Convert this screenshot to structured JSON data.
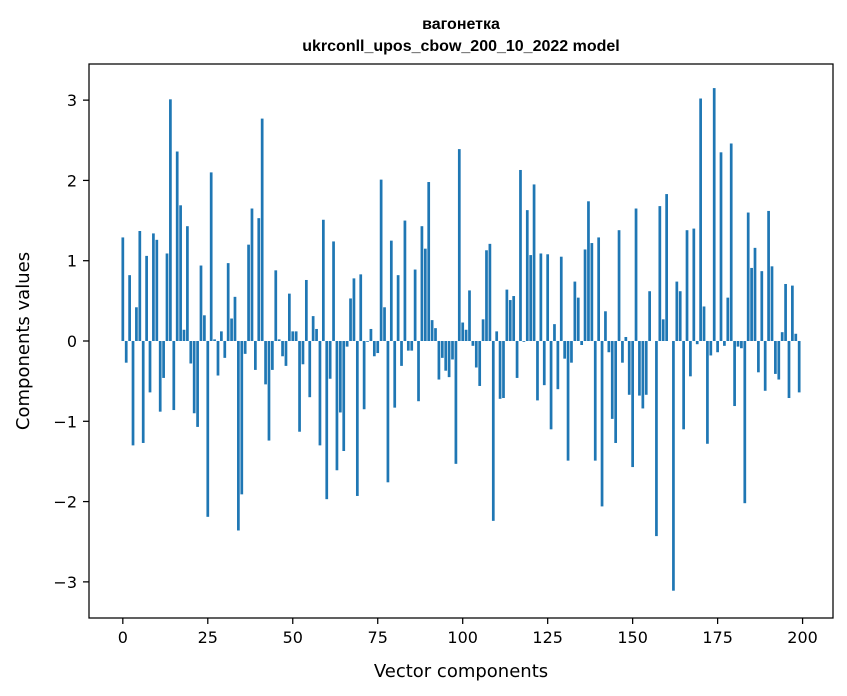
{
  "chart_data": {
    "type": "bar",
    "title": "вагонетка",
    "subtitle": "ukrconll_upos_cbow_200_10_2022 model",
    "xlabel": "Vector components",
    "ylabel": "Components values",
    "xlim": [
      -9.95,
      208.95
    ],
    "ylim": [
      -3.45,
      3.45
    ],
    "xticks": [
      0,
      25,
      50,
      75,
      100,
      125,
      150,
      175,
      200
    ],
    "yticks": [
      -3,
      -2,
      -1,
      0,
      1,
      2,
      3
    ],
    "xtick_labels": [
      "0",
      "25",
      "50",
      "75",
      "100",
      "125",
      "150",
      "175",
      "200"
    ],
    "ytick_labels": [
      "−3",
      "−2",
      "−1",
      "0",
      "1",
      "2",
      "3"
    ],
    "grid": false,
    "color": "#1f77b4",
    "x": [
      0,
      1,
      2,
      3,
      4,
      5,
      6,
      7,
      8,
      9,
      10,
      11,
      12,
      13,
      14,
      15,
      16,
      17,
      18,
      19,
      20,
      21,
      22,
      23,
      24,
      25,
      26,
      27,
      28,
      29,
      30,
      31,
      32,
      33,
      34,
      35,
      36,
      37,
      38,
      39,
      40,
      41,
      42,
      43,
      44,
      45,
      46,
      47,
      48,
      49,
      50,
      51,
      52,
      53,
      54,
      55,
      56,
      57,
      58,
      59,
      60,
      61,
      62,
      63,
      64,
      65,
      66,
      67,
      68,
      69,
      70,
      71,
      72,
      73,
      74,
      75,
      76,
      77,
      78,
      79,
      80,
      81,
      82,
      83,
      84,
      85,
      86,
      87,
      88,
      89,
      90,
      91,
      92,
      93,
      94,
      95,
      96,
      97,
      98,
      99,
      100,
      101,
      102,
      103,
      104,
      105,
      106,
      107,
      108,
      109,
      110,
      111,
      112,
      113,
      114,
      115,
      116,
      117,
      118,
      119,
      120,
      121,
      122,
      123,
      124,
      125,
      126,
      127,
      128,
      129,
      130,
      131,
      132,
      133,
      134,
      135,
      136,
      137,
      138,
      139,
      140,
      141,
      142,
      143,
      144,
      145,
      146,
      147,
      148,
      149,
      150,
      151,
      152,
      153,
      154,
      155,
      156,
      157,
      158,
      159,
      160,
      161,
      162,
      163,
      164,
      165,
      166,
      167,
      168,
      169,
      170,
      171,
      172,
      173,
      174,
      175,
      176,
      177,
      178,
      179,
      180,
      181,
      182,
      183,
      184,
      185,
      186,
      187,
      188,
      189,
      190,
      191,
      192,
      193,
      194,
      195,
      196,
      197,
      198,
      199
    ],
    "values": [
      1.29,
      -0.27,
      0.82,
      -1.3,
      0.42,
      1.37,
      -1.27,
      1.06,
      -0.64,
      1.34,
      1.26,
      -0.88,
      -0.46,
      1.09,
      3.01,
      -0.86,
      2.36,
      1.69,
      0.14,
      1.43,
      -0.28,
      -0.9,
      -1.07,
      0.94,
      0.32,
      -2.19,
      2.1,
      0.02,
      -0.43,
      0.12,
      -0.21,
      0.97,
      0.28,
      0.55,
      -2.36,
      -1.91,
      -0.16,
      1.2,
      1.65,
      -0.36,
      1.53,
      2.77,
      -0.54,
      -1.24,
      -0.36,
      0.88,
      0.02,
      -0.19,
      -0.31,
      0.59,
      0.12,
      0.12,
      -1.13,
      -0.29,
      0.76,
      -0.7,
      0.31,
      0.15,
      -1.3,
      1.51,
      -1.97,
      -0.47,
      1.24,
      -1.61,
      -0.89,
      -1.37,
      -0.07,
      0.53,
      0.78,
      -1.93,
      0.83,
      -0.85,
      -0.01,
      0.15,
      -0.19,
      -0.15,
      2.01,
      0.42,
      -1.76,
      1.25,
      -0.83,
      0.82,
      -0.31,
      1.5,
      -0.12,
      -0.12,
      0.89,
      -0.75,
      1.43,
      1.15,
      1.98,
      0.26,
      0.16,
      -0.48,
      -0.21,
      -0.37,
      -0.45,
      -0.23,
      -1.53,
      2.39,
      0.23,
      0.14,
      0.63,
      -0.06,
      -0.33,
      -0.56,
      0.27,
      1.13,
      1.21,
      -2.24,
      0.12,
      -0.72,
      -0.71,
      0.64,
      0.51,
      0.56,
      -0.46,
      2.13,
      -0.01,
      1.63,
      1.07,
      1.95,
      -0.74,
      1.09,
      -0.55,
      1.08,
      -1.1,
      0.21,
      -0.6,
      1.05,
      -0.22,
      -1.49,
      -0.27,
      0.74,
      0.54,
      -0.05,
      1.14,
      1.74,
      1.22,
      -1.49,
      1.29,
      -2.06,
      0.37,
      -0.14,
      -0.97,
      -1.27,
      1.38,
      -0.27,
      0.05,
      -0.67,
      -1.57,
      1.65,
      -0.68,
      -0.84,
      -0.67,
      0.62,
      0.0,
      -2.43,
      1.68,
      0.27,
      1.83,
      0.0,
      -3.11,
      0.74,
      0.62,
      -1.1,
      1.38,
      -0.44,
      1.4,
      -0.04,
      3.02,
      0.43,
      -1.28,
      -0.18,
      3.15,
      -0.14,
      2.35,
      -0.06,
      0.54,
      2.46,
      -0.81,
      -0.07,
      -0.09,
      -2.02,
      1.6,
      0.91,
      1.16,
      -0.39,
      0.87,
      -0.62,
      1.62,
      0.93,
      -0.41,
      -0.48,
      0.11,
      0.71,
      -0.71,
      0.69,
      0.09,
      -0.64
    ]
  }
}
